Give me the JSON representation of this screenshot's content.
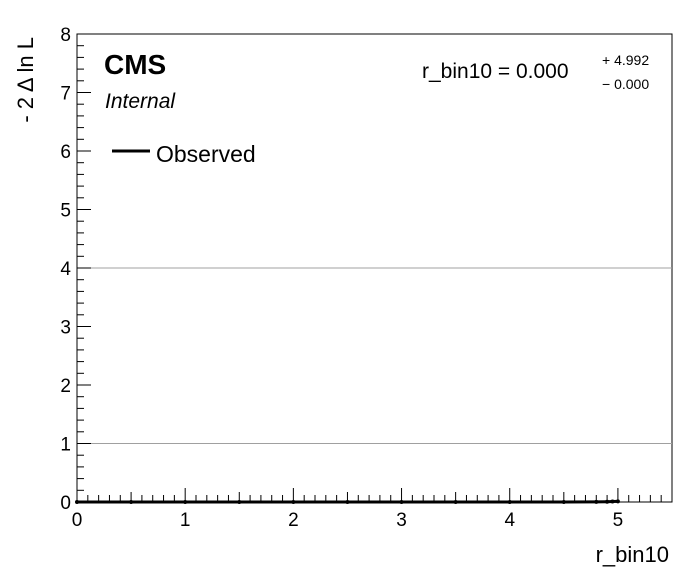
{
  "chart_data": {
    "type": "line",
    "xlabel": "r_bin10",
    "ylabel": "- 2 Δ ln L",
    "xlim": [
      0,
      5.5
    ],
    "ylim": [
      0,
      8
    ],
    "x_ticks": [
      "0",
      "1",
      "2",
      "3",
      "4",
      "5"
    ],
    "y_ticks": [
      "0",
      "1",
      "2",
      "3",
      "4",
      "5",
      "6",
      "7",
      "8"
    ],
    "reference_lines": [
      1,
      4
    ],
    "grid": false,
    "legend_position": "top-left",
    "series": [
      {
        "name": "Observed",
        "color": "#000000",
        "x": [
          0,
          0.5,
          1,
          1.5,
          2,
          2.5,
          3,
          3.5,
          4,
          4.5,
          4.8,
          4.9,
          4.95,
          5.0
        ],
        "y": [
          0,
          0,
          0,
          0,
          0,
          0,
          0,
          0,
          0,
          0,
          0.002,
          0.005,
          0.008,
          0.01
        ]
      }
    ]
  },
  "labels": {
    "experiment": "CMS",
    "status": "Internal",
    "result_text": "r_bin10 = 0.000",
    "err_up": "+ 4.992",
    "err_down": "− 0.000"
  }
}
